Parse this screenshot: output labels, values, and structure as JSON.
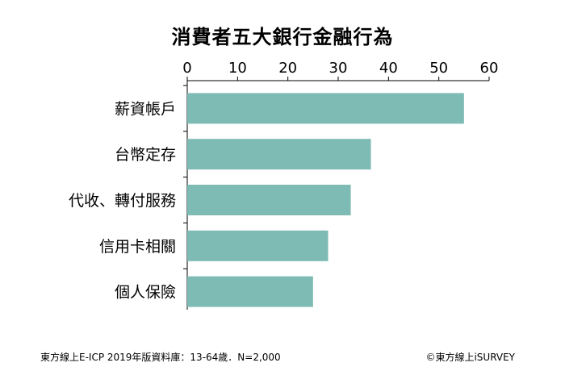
{
  "chart_data": {
    "type": "bar",
    "orientation": "horizontal",
    "title": "消費者五大銀行金融行為",
    "categories": [
      "薪資帳戶",
      "台幣定存",
      "代收、轉付服務",
      "信用卡相關",
      "個人保險"
    ],
    "values": [
      55,
      36.5,
      32.5,
      28,
      25
    ],
    "xlim": [
      0,
      60
    ],
    "xticks": [
      "0",
      "10",
      "20",
      "30",
      "40",
      "50",
      "60"
    ],
    "axis_position": "top",
    "grid": false,
    "bar_color": "#7ebbb4"
  },
  "footer": {
    "source": "東方線上E-ICP 2019年版資料庫：13-64歲．N=2,000",
    "copyright": "©東方線上iSURVEY"
  }
}
